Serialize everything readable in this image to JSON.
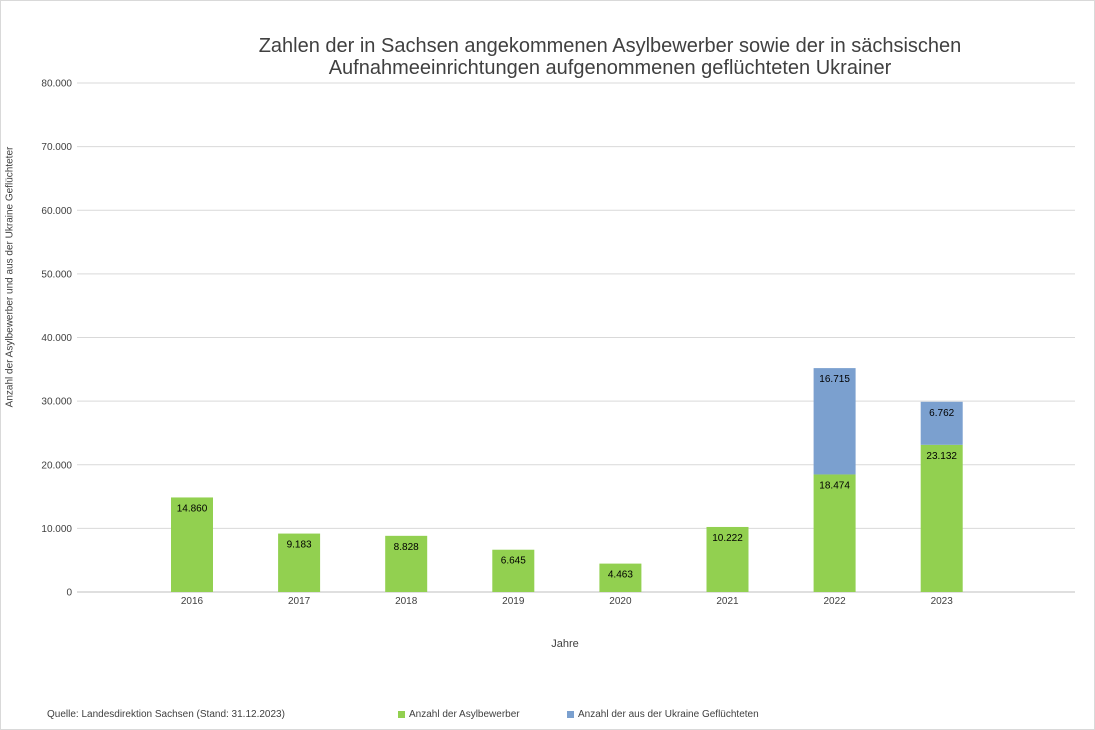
{
  "chart_data": {
    "type": "bar",
    "stacked": true,
    "title": [
      "Zahlen der in Sachsen angekommenen Asylbewerber sowie der in sächsischen",
      "Aufnahmeeinrichtungen aufgenommenen geflüchteten Ukrainer"
    ],
    "xlabel": "Jahre",
    "ylabel": "Anzahl der Asylbewerber und aus der Ukraine Geflüchteter",
    "categories": [
      "2016",
      "2017",
      "2018",
      "2019",
      "2020",
      "2021",
      "2022",
      "2023"
    ],
    "series": [
      {
        "name": "Anzahl der Asylbewerber",
        "color": "#92d050",
        "values": [
          14860,
          9183,
          8828,
          6645,
          4463,
          10222,
          18474,
          23132
        ],
        "labels": [
          "14.860",
          "9.183",
          "8.828",
          "6.645",
          "4.463",
          "10.222",
          "18.474",
          "23.132"
        ]
      },
      {
        "name": "Anzahl der aus der Ukraine Geflüchteten",
        "color": "#7ba0cf",
        "values": [
          null,
          null,
          null,
          null,
          null,
          null,
          16715,
          6762
        ],
        "labels": [
          "",
          "",
          "",
          "",
          "",
          "",
          "16.715",
          "6.762"
        ]
      }
    ],
    "ylim": [
      0,
      80000
    ],
    "yticks": [
      0,
      10000,
      20000,
      30000,
      40000,
      50000,
      60000,
      70000,
      80000
    ],
    "ytick_labels": [
      "0",
      "10.000",
      "20.000",
      "30.000",
      "40.000",
      "50.000",
      "60.000",
      "70.000",
      "80.000"
    ],
    "grid": true,
    "legend": "bottom"
  },
  "footer": {
    "source": "Quelle: Landesdirektion Sachsen (Stand: 31.12.2023)"
  },
  "colors": {
    "grid": "#d9d9d9",
    "axis": "#bfbfbf"
  }
}
